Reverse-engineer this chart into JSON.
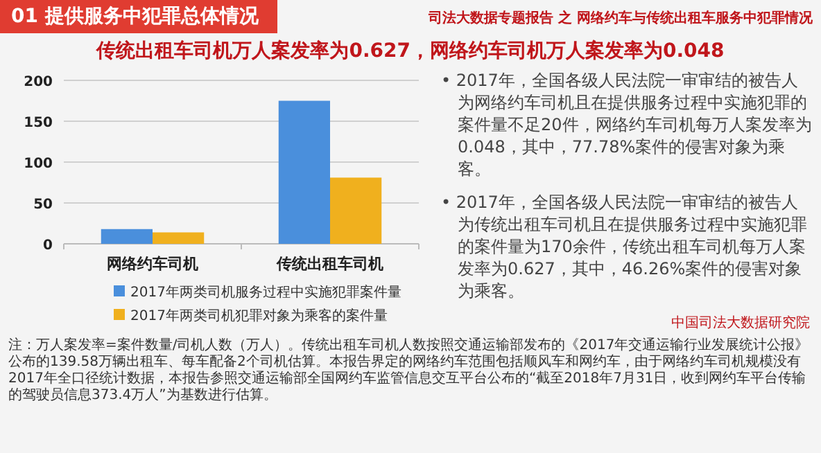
{
  "chart_data": {
    "type": "bar",
    "title": "传统出租车司机万人案发率为0.627，网络约车司机万人案发率为0.048",
    "categories": [
      "网络约车司机",
      "传统出租车司机"
    ],
    "series": [
      {
        "name": "2017年两类司机服务过程中实施犯罪案件量",
        "color": "#4a8fdc",
        "values": [
          18,
          175
        ]
      },
      {
        "name": "2017年两类司机犯罪对象为乘客的案件量",
        "color": "#f0b01e",
        "values": [
          14,
          81
        ]
      }
    ],
    "ylim": [
      0,
      200
    ],
    "yticks": [
      0,
      50,
      100,
      150,
      200
    ],
    "grid": "y",
    "legend": "bottom",
    "annotations": [
      "01 提供服务中犯罪总体情况",
      "司法大数据专题报告 之 网络约车与传统出租车服务中犯罪情况",
      "• 2017年，全国各级人民法院一审审结的被告人为网络约车司机且在提供服务过程中实施犯罪的案件量不足20件，网络约车司机每万人案发率为0.048，其中，77.78%案件的侵害对象为乘客。",
      "• 2017年，全国各级人民法院一审审结的被告人为传统出租车司机且在提供服务过程中实施犯罪的案件量为170余件，传统出租车司机每万人案发率为0.627，其中，46.26%案件的侵害对象为乘客。",
      "注：万人案发率=案件数量/司机人数（万人）。传统出租车司机人数按照交通运输部发布的《2017年交通运输行业发展统计公报》公布的139.58万辆出租车、每车配备2个司机估算。本报告界定的网络约车范围包括顺风车和网约车，由于网络约车司机规模没有2017年全口径统计数据，本报告参照交通运输部全国网约车监管信息交互平台公布的“截至2018年7月31日，收到网约车平台传输的驾驶员信息373.4万人”为基数进行估算。",
      "中国司法大数据研究院"
    ]
  }
}
